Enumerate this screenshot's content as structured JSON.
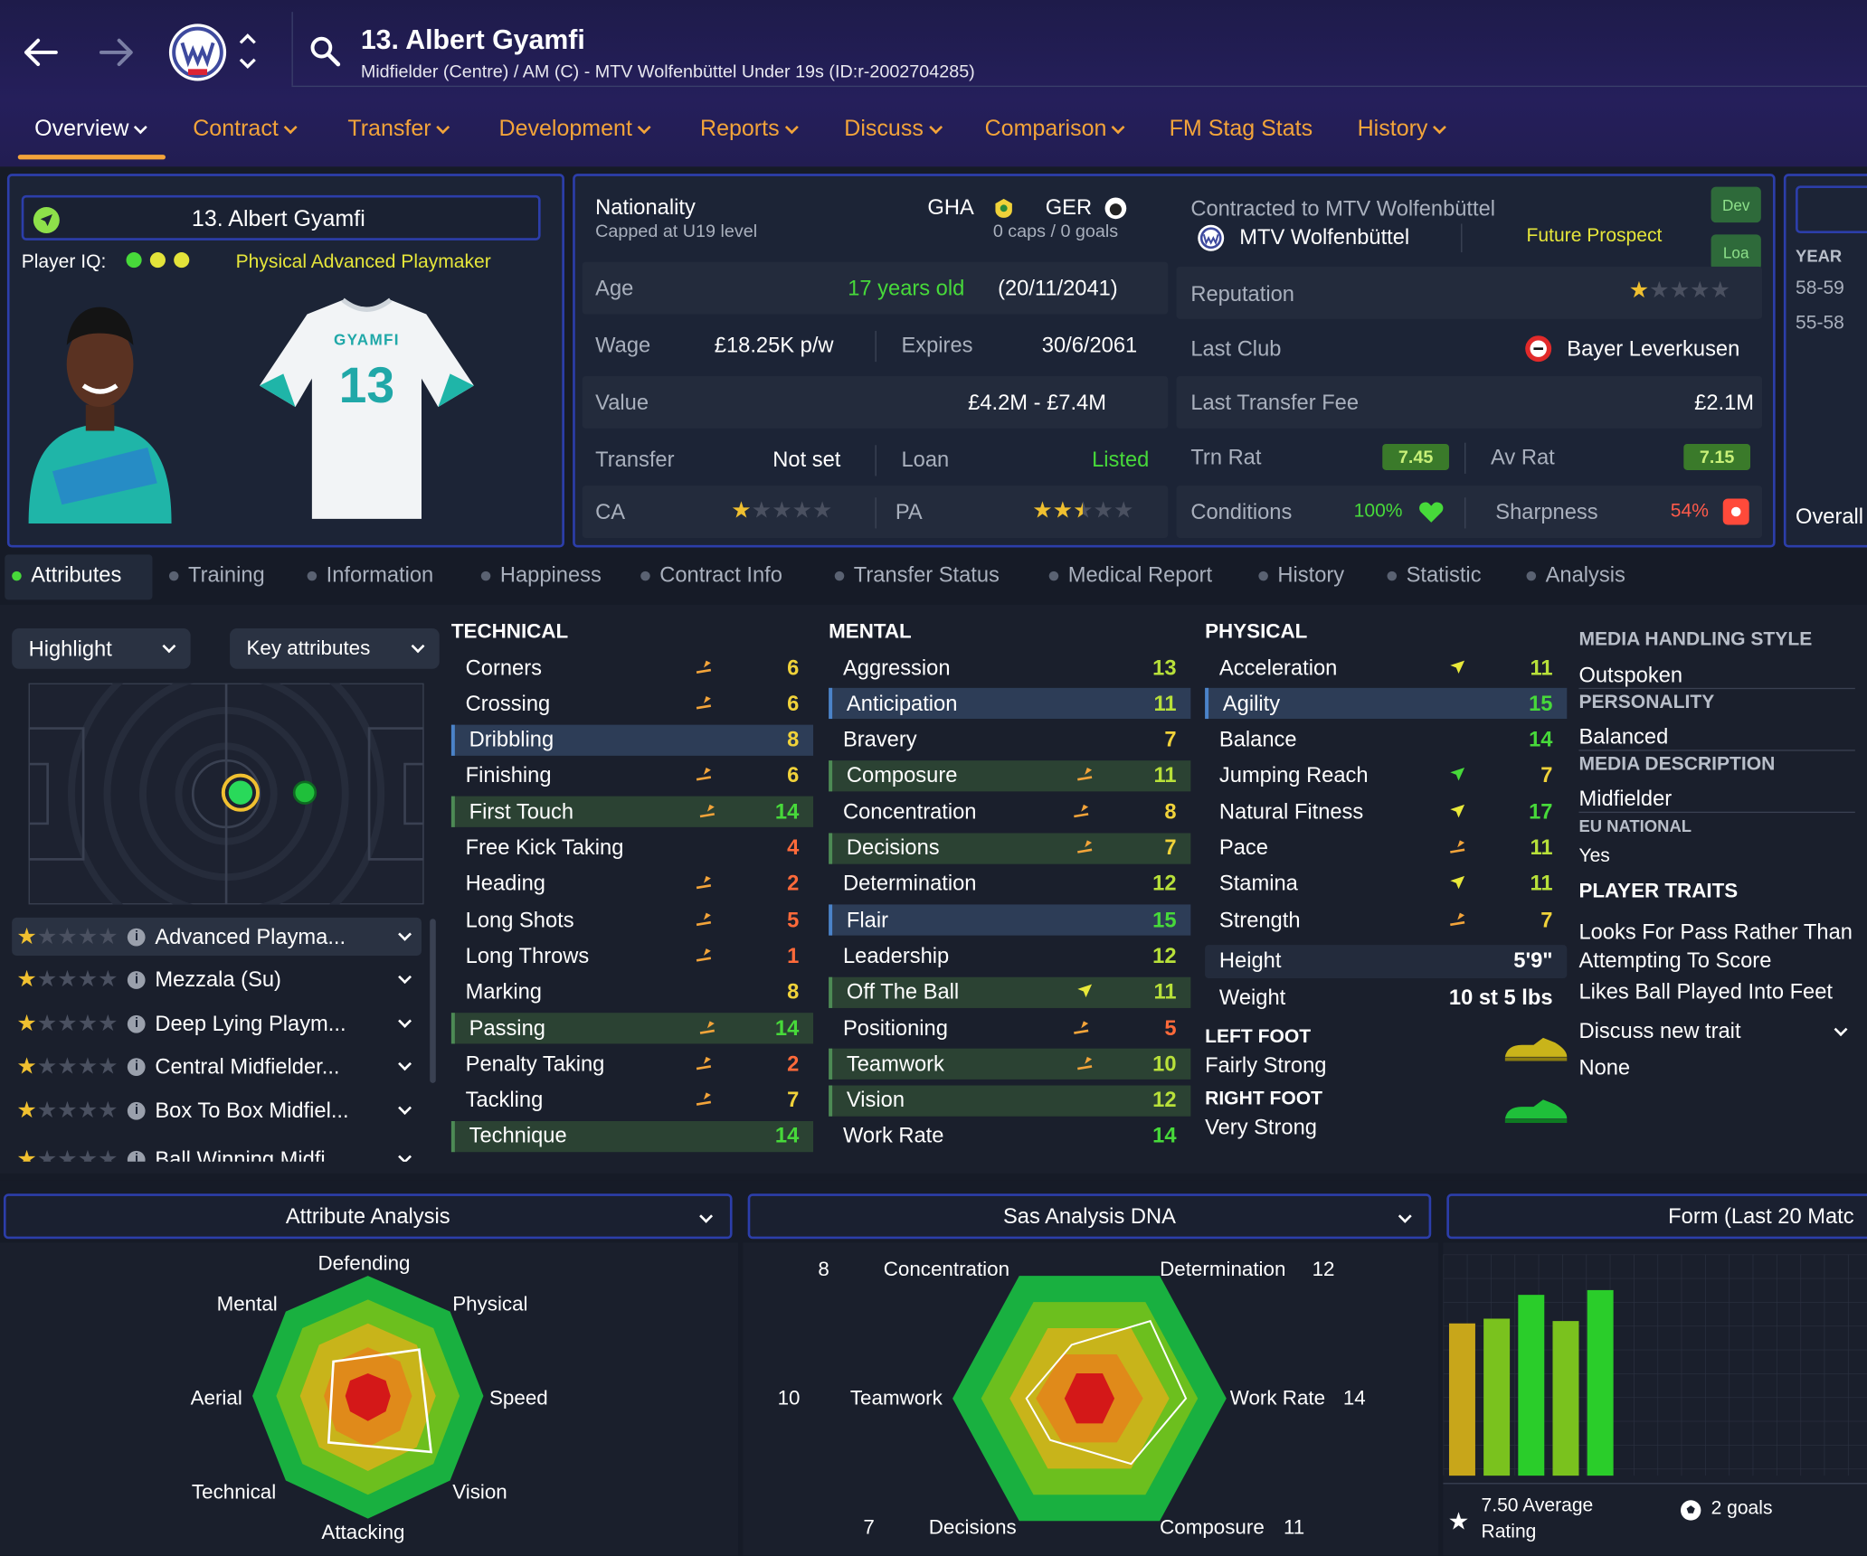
{
  "header": {
    "title": "13. Albert Gyamfi",
    "subtitle": "Midfielder (Centre) / AM (C) - MTV Wolfenbüttel Under 19s (ID:r-2002704285)"
  },
  "nav_tabs": [
    "Overview",
    "Contract",
    "Transfer",
    "Development",
    "Reports",
    "Discuss",
    "Comparison",
    "FM Stag Stats",
    "History"
  ],
  "player_card": {
    "name": "13. Albert Gyamfi",
    "player_iq_label": "Player IQ:",
    "role": "Physical Advanced Playmaker",
    "shirt_name": "GYAMFI",
    "shirt_number": "13"
  },
  "info": {
    "nationality_label": "Nationality",
    "capped": "Capped at U19 level",
    "nation1": "GHA",
    "nation2": "GER",
    "caps": "0 caps / 0 goals",
    "age_label": "Age",
    "age": "17 years old",
    "dob": "(20/11/2041)",
    "wage_label": "Wage",
    "wage": "£18.25K p/w",
    "expires_label": "Expires",
    "expires": "30/6/2061",
    "value_label": "Value",
    "value": "£4.2M - £7.4M",
    "transfer_label": "Transfer",
    "transfer": "Not set",
    "loan_label": "Loan",
    "loan": "Listed",
    "ca_label": "CA",
    "pa_label": "PA",
    "ca_stars": 1,
    "pa_stars": 2.5
  },
  "club": {
    "contracted": "Contracted to MTV Wolfenbüttel",
    "club_name": "MTV Wolfenbüttel",
    "prospect": "Future Prospect",
    "dev_badge": "Dev",
    "loan_badge": "Loa",
    "reputation_label": "Reputation",
    "reputation_stars": 1,
    "last_club_label": "Last Club",
    "last_club": "Bayer Leverkusen",
    "fee_label": "Last Transfer Fee",
    "fee": "£2.1M",
    "trn_label": "Trn Rat",
    "trn": "7.45",
    "av_label": "Av Rat",
    "av": "7.15",
    "conditions_label": "Conditions",
    "conditions": "100%",
    "sharpness_label": "Sharpness",
    "sharpness": "54%"
  },
  "side_panel": {
    "year_label": "YEAR",
    "years": [
      "58-59",
      "55-58"
    ],
    "overall": "Overall"
  },
  "sub_tabs": [
    "Attributes",
    "Training",
    "Information",
    "Happiness",
    "Contract Info",
    "Transfer Status",
    "Medical Report",
    "History",
    "Statistic",
    "Analysis"
  ],
  "controls": {
    "highlight": "Highlight",
    "key_attributes": "Key attributes"
  },
  "roles": [
    {
      "name": "Advanced Playma...",
      "stars": 1
    },
    {
      "name": "Mezzala (Su)",
      "stars": 1
    },
    {
      "name": "Deep Lying Playm...",
      "stars": 1
    },
    {
      "name": "Central Midfielder...",
      "stars": 1
    },
    {
      "name": "Box To Box Midfiel...",
      "stars": 1
    },
    {
      "name": "Ball Winning Midfi",
      "stars": 1
    }
  ],
  "technical_title": "TECHNICAL",
  "technical": [
    {
      "name": "Corners",
      "value": "6",
      "arrow": "up-orange"
    },
    {
      "name": "Crossing",
      "value": "6",
      "arrow": "up-orange"
    },
    {
      "name": "Dribbling",
      "value": "8",
      "hl": "blue"
    },
    {
      "name": "Finishing",
      "value": "6",
      "arrow": "up-orange"
    },
    {
      "name": "First Touch",
      "value": "14",
      "arrow": "up-orange",
      "hl": "green"
    },
    {
      "name": "Free Kick Taking",
      "value": "4"
    },
    {
      "name": "Heading",
      "value": "2",
      "arrow": "up-orange"
    },
    {
      "name": "Long Shots",
      "value": "5",
      "arrow": "up-orange"
    },
    {
      "name": "Long Throws",
      "value": "1",
      "arrow": "up-orange"
    },
    {
      "name": "Marking",
      "value": "8"
    },
    {
      "name": "Passing",
      "value": "14",
      "arrow": "up-orange",
      "hl": "green"
    },
    {
      "name": "Penalty Taking",
      "value": "2",
      "arrow": "up-orange"
    },
    {
      "name": "Tackling",
      "value": "7",
      "arrow": "up-orange"
    },
    {
      "name": "Technique",
      "value": "14",
      "hl": "green"
    }
  ],
  "mental_title": "MENTAL",
  "mental": [
    {
      "name": "Aggression",
      "value": "13"
    },
    {
      "name": "Anticipation",
      "value": "11",
      "hl": "blue"
    },
    {
      "name": "Bravery",
      "value": "7"
    },
    {
      "name": "Composure",
      "value": "11",
      "arrow": "up-orange",
      "hl": "green"
    },
    {
      "name": "Concentration",
      "value": "8",
      "arrow": "up-orange"
    },
    {
      "name": "Decisions",
      "value": "7",
      "arrow": "up-orange",
      "hl": "green"
    },
    {
      "name": "Determination",
      "value": "12"
    },
    {
      "name": "Flair",
      "value": "15",
      "hl": "blue"
    },
    {
      "name": "Leadership",
      "value": "12"
    },
    {
      "name": "Off The Ball",
      "value": "11",
      "arrow": "up-yellow",
      "hl": "green"
    },
    {
      "name": "Positioning",
      "value": "5",
      "arrow": "up-orange"
    },
    {
      "name": "Teamwork",
      "value": "10",
      "arrow": "up-orange",
      "hl": "green"
    },
    {
      "name": "Vision",
      "value": "12",
      "hl": "green"
    },
    {
      "name": "Work Rate",
      "value": "14"
    }
  ],
  "physical_title": "PHYSICAL",
  "physical": [
    {
      "name": "Acceleration",
      "value": "11",
      "arrow": "up-yellow"
    },
    {
      "name": "Agility",
      "value": "15",
      "hl": "blue"
    },
    {
      "name": "Balance",
      "value": "14"
    },
    {
      "name": "Jumping Reach",
      "value": "7",
      "arrow": "up-green"
    },
    {
      "name": "Natural Fitness",
      "value": "17",
      "arrow": "up-yellow"
    },
    {
      "name": "Pace",
      "value": "11",
      "arrow": "up-orange"
    },
    {
      "name": "Stamina",
      "value": "11",
      "arrow": "up-yellow"
    },
    {
      "name": "Strength",
      "value": "7",
      "arrow": "up-orange"
    }
  ],
  "body": {
    "height_label": "Height",
    "height": "5'9\"",
    "weight_label": "Weight",
    "weight": "10 st 5 lbs"
  },
  "feet": {
    "left_label": "LEFT FOOT",
    "left": "Fairly Strong",
    "right_label": "RIGHT FOOT",
    "right": "Very Strong"
  },
  "media": {
    "style_label": "MEDIA HANDLING STYLE",
    "style": "Outspoken",
    "personality_label": "PERSONALITY",
    "personality": "Balanced",
    "desc_label": "MEDIA DESCRIPTION",
    "desc": "Midfielder",
    "eu_label": "EU NATIONAL",
    "eu": "Yes",
    "traits_label": "PLAYER TRAITS",
    "traits": [
      "Looks For Pass Rather Than Attempting To Score",
      "Likes Ball Played Into Feet"
    ],
    "discuss": "Discuss new trait",
    "none": "None"
  },
  "attribute_analysis": {
    "title": "Attribute Analysis",
    "labels": [
      "Defending",
      "Physical",
      "Speed",
      "Vision",
      "Attacking",
      "Technical",
      "Aerial",
      "Mental"
    ]
  },
  "sas_dna": {
    "title": "Sas Analysis DNA",
    "labels": [
      "Concentration",
      "Determination",
      "Work Rate",
      "Composure",
      "Decisions",
      "Teamwork"
    ],
    "values": [
      "8",
      "12",
      "14",
      "11",
      "7",
      "10"
    ]
  },
  "form": {
    "title": "Form (Last 20 Matc",
    "avg_rating": "7.50 Average",
    "avg_rating2": "Rating",
    "goals": "2 goals"
  },
  "colors": {
    "accent_orange": "#f3a43a",
    "green": "#47d93a",
    "gold": "#f0d23a",
    "panel_border": "#2c3eaa"
  }
}
